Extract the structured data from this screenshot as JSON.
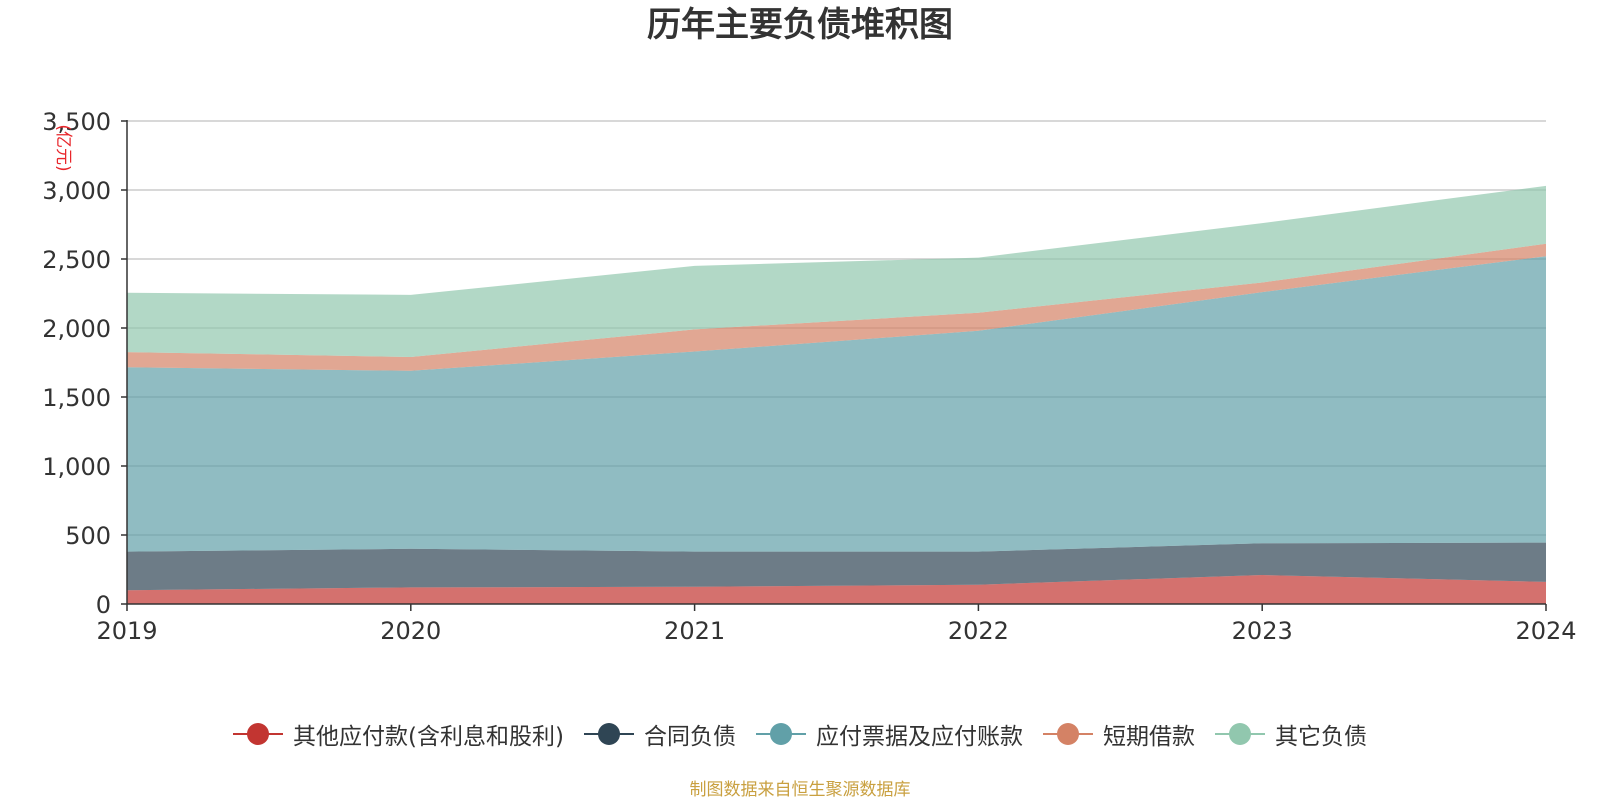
{
  "chart_data": {
    "type": "area",
    "stacked": true,
    "title": "历年主要负债堆积图",
    "y_unit_label": "(亿元)",
    "x": [
      "2019",
      "2020",
      "2021",
      "2022",
      "2023",
      "2024"
    ],
    "ylim": [
      0,
      3500
    ],
    "y_ticks": [
      "0",
      "500",
      "1,000",
      "1,500",
      "2,000",
      "2,500",
      "3,000",
      "3,500"
    ],
    "grid": true,
    "legend_position": "bottom",
    "series": [
      {
        "name": "其他应付款(含利息和股利)",
        "color": "#c23531",
        "values": [
          100,
          120,
          125,
          140,
          210,
          160
        ]
      },
      {
        "name": "合同负债",
        "color": "#2f4554",
        "values": [
          280,
          280,
          255,
          240,
          230,
          285
        ]
      },
      {
        "name": "应付票据及应付账款",
        "color": "#61a0a8",
        "values": [
          1335,
          1290,
          1450,
          1600,
          1820,
          2075
        ]
      },
      {
        "name": "短期借款",
        "color": "#d48265",
        "values": [
          110,
          100,
          160,
          130,
          70,
          90
        ]
      },
      {
        "name": "其它负债",
        "color": "#91c7ae",
        "values": [
          430,
          450,
          460,
          400,
          430,
          420
        ]
      }
    ]
  },
  "source_note": "制图数据来自恒生聚源数据库"
}
